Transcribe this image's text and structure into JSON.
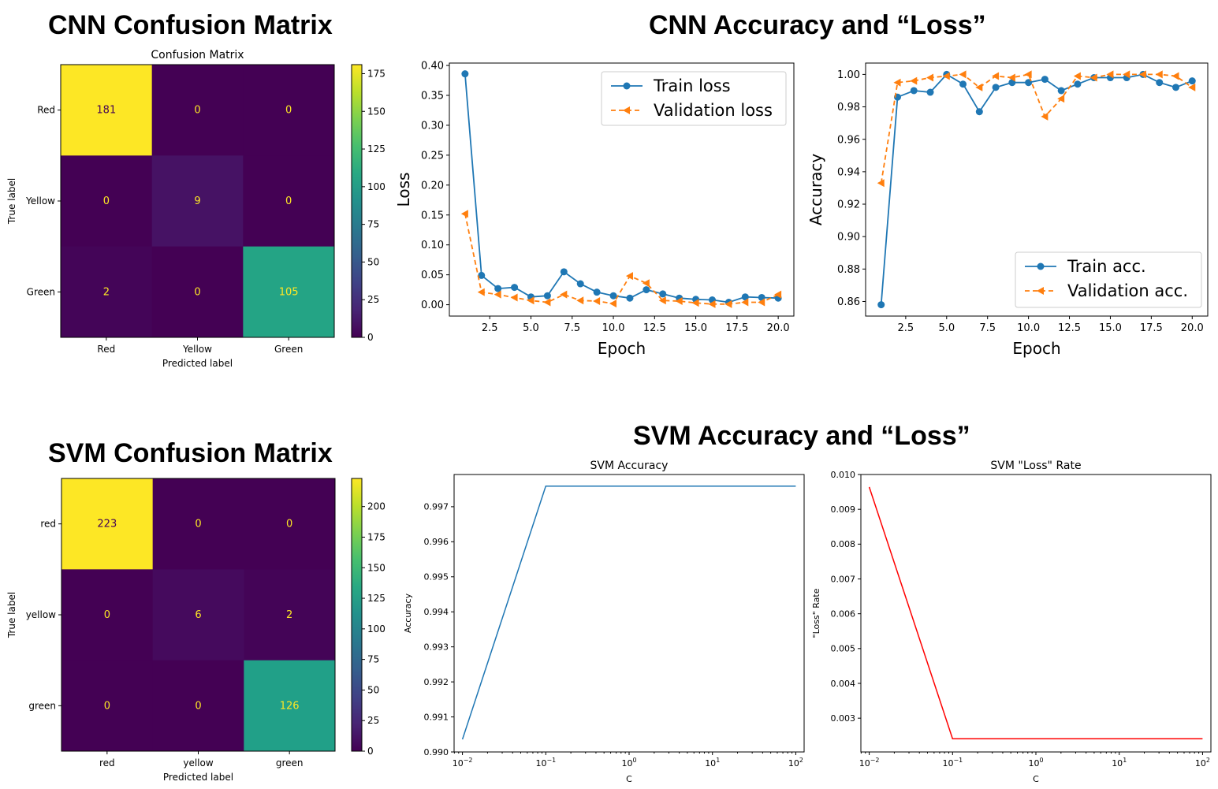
{
  "headings": {
    "cnn_cm": "CNN Confusion Matrix",
    "cnn_curves": "CNN Accuracy and “Loss”",
    "svm_cm": "SVM Confusion Matrix",
    "svm_curves": "SVM Accuracy and “Loss”"
  },
  "chart_data": [
    {
      "id": "cnn_cm",
      "type": "heatmap",
      "title": "Confusion Matrix",
      "xlabel": "Predicted label",
      "ylabel": "True label",
      "row_labels": [
        "Red",
        "Yellow",
        "Green"
      ],
      "col_labels": [
        "Red",
        "Yellow",
        "Green"
      ],
      "values": [
        [
          181,
          0,
          0
        ],
        [
          0,
          9,
          0
        ],
        [
          2,
          0,
          105
        ]
      ],
      "colorbar_ticks": [
        "0",
        "25",
        "50",
        "75",
        "100",
        "125",
        "150",
        "175"
      ],
      "colormap": "viridis",
      "vmin": 0,
      "vmax": 181
    },
    {
      "id": "cnn_loss",
      "type": "line",
      "xlabel": "Epoch",
      "ylabel": "Loss",
      "xlim": [
        0.05,
        20.95
      ],
      "ylim": [
        -0.019,
        0.404
      ],
      "xticks": [
        "2.5",
        "5.0",
        "7.5",
        "10.0",
        "12.5",
        "15.0",
        "17.5",
        "20.0"
      ],
      "yticks": [
        "0.00",
        "0.05",
        "0.10",
        "0.15",
        "0.20",
        "0.25",
        "0.30",
        "0.35",
        "0.40"
      ],
      "legend_position": "upper right",
      "x": [
        1,
        2,
        3,
        4,
        5,
        6,
        7,
        8,
        9,
        10,
        11,
        12,
        13,
        14,
        15,
        16,
        17,
        18,
        19,
        20
      ],
      "series": [
        {
          "name": "Train loss",
          "color": "#1f77b4",
          "style": "solid",
          "marker": "circle",
          "values": [
            0.386,
            0.049,
            0.027,
            0.029,
            0.013,
            0.015,
            0.055,
            0.035,
            0.021,
            0.015,
            0.011,
            0.025,
            0.018,
            0.011,
            0.009,
            0.008,
            0.004,
            0.013,
            0.012,
            0.011
          ]
        },
        {
          "name": "Validation loss",
          "color": "#ff7f0e",
          "style": "dashed",
          "marker": "triangle-left",
          "values": [
            0.152,
            0.021,
            0.017,
            0.012,
            0.007,
            0.004,
            0.017,
            0.007,
            0.006,
            0.002,
            0.048,
            0.036,
            0.007,
            0.006,
            0.003,
            0.001,
            0.001,
            0.004,
            0.004,
            0.017
          ]
        }
      ]
    },
    {
      "id": "cnn_acc",
      "type": "line",
      "xlabel": "Epoch",
      "ylabel": "Accuracy",
      "xlim": [
        0.05,
        20.95
      ],
      "ylim": [
        0.851,
        1.007
      ],
      "xticks": [
        "2.5",
        "5.0",
        "7.5",
        "10.0",
        "12.5",
        "15.0",
        "17.5",
        "20.0"
      ],
      "yticks": [
        "0.86",
        "0.88",
        "0.90",
        "0.92",
        "0.94",
        "0.96",
        "0.98",
        "1.00"
      ],
      "legend_position": "lower right",
      "x": [
        1,
        2,
        3,
        4,
        5,
        6,
        7,
        8,
        9,
        10,
        11,
        12,
        13,
        14,
        15,
        16,
        17,
        18,
        19,
        20
      ],
      "series": [
        {
          "name": "Train acc.",
          "color": "#1f77b4",
          "style": "solid",
          "marker": "circle",
          "values": [
            0.858,
            0.986,
            0.99,
            0.989,
            1.0,
            0.994,
            0.977,
            0.992,
            0.995,
            0.995,
            0.997,
            0.99,
            0.994,
            0.998,
            0.998,
            0.998,
            1.0,
            0.995,
            0.992,
            0.996
          ]
        },
        {
          "name": "Validation acc.",
          "color": "#ff7f0e",
          "style": "dashed",
          "marker": "triangle-left",
          "values": [
            0.933,
            0.995,
            0.996,
            0.998,
            0.999,
            1.0,
            0.992,
            0.999,
            0.998,
            1.0,
            0.974,
            0.985,
            0.999,
            0.998,
            1.0,
            1.0,
            1.0,
            1.0,
            0.999,
            0.992
          ]
        }
      ]
    },
    {
      "id": "svm_cm",
      "type": "heatmap",
      "title": "",
      "xlabel": "Predicted label",
      "ylabel": "True label",
      "row_labels": [
        "red",
        "yellow",
        "green"
      ],
      "col_labels": [
        "red",
        "yellow",
        "green"
      ],
      "values": [
        [
          223,
          0,
          0
        ],
        [
          0,
          6,
          2
        ],
        [
          0,
          0,
          126
        ]
      ],
      "colorbar_ticks": [
        "0",
        "25",
        "50",
        "75",
        "100",
        "125",
        "150",
        "175",
        "200"
      ],
      "colormap": "viridis",
      "vmin": 0,
      "vmax": 223
    },
    {
      "id": "svm_acc",
      "type": "line",
      "title": "SVM Accuracy",
      "xlabel": "C",
      "ylabel": "Accuracy",
      "xscale": "log",
      "xlim": [
        0.00794,
        125.9
      ],
      "ylim": [
        0.99,
        0.99792
      ],
      "xticks": [
        0.01,
        0.1,
        1,
        10,
        100
      ],
      "yticks": [
        "0.990",
        "0.991",
        "0.992",
        "0.993",
        "0.994",
        "0.995",
        "0.996",
        "0.997"
      ],
      "x": [
        0.01,
        0.1,
        1,
        10,
        100
      ],
      "series": [
        {
          "color": "#1f77b4",
          "values": [
            0.99036,
            0.99759,
            0.99759,
            0.99759,
            0.99759
          ]
        }
      ]
    },
    {
      "id": "svm_loss",
      "type": "line",
      "title": "SVM \"Loss\" Rate",
      "xlabel": "C",
      "ylabel": "\"Loss\" Rate",
      "xscale": "log",
      "xlim": [
        0.00794,
        125.9
      ],
      "ylim": [
        0.00203,
        0.01
      ],
      "xticks": [
        0.01,
        0.1,
        1,
        10,
        100
      ],
      "yticks": [
        "0.003",
        "0.004",
        "0.005",
        "0.006",
        "0.007",
        "0.008",
        "0.009",
        "0.010"
      ],
      "x": [
        0.01,
        0.1,
        1,
        10,
        100
      ],
      "series": [
        {
          "color": "#ff0000",
          "values": [
            0.00964,
            0.00241,
            0.00241,
            0.00241,
            0.00241
          ]
        }
      ]
    }
  ]
}
